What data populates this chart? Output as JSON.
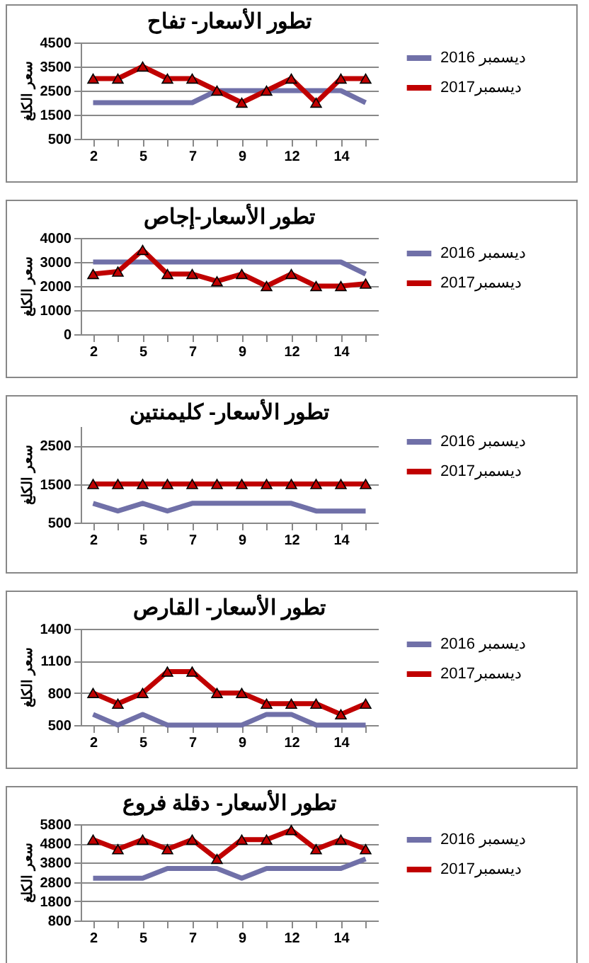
{
  "chart_data": [
    {
      "type": "line",
      "title": "تطور الأسعار- تفاح",
      "ylabel": "سعر الكلغ",
      "categories": [
        "2",
        null,
        "5",
        null,
        "7",
        null,
        "9",
        null,
        "12",
        null,
        "14",
        null
      ],
      "ylim": [
        500,
        4500
      ],
      "yticks": [
        500,
        1500,
        2500,
        3500,
        4500
      ],
      "grid": "y",
      "legend": "right",
      "series": [
        {
          "name": "ديسمبر 2016",
          "color": "#7070a8",
          "marker": "none",
          "values": [
            2000,
            2000,
            2000,
            2000,
            2000,
            2500,
            2500,
            2500,
            2500,
            2500,
            2500,
            2000
          ]
        },
        {
          "name": "ديسمبر2017",
          "color": "#c00000",
          "marker": "triangle",
          "values": [
            3000,
            3000,
            3500,
            3000,
            3000,
            2500,
            2000,
            2500,
            3000,
            2000,
            3000,
            3000
          ]
        }
      ]
    },
    {
      "type": "line",
      "title": "تطور الأسعار-إجاص",
      "ylabel": "سعر الكلغ",
      "categories": [
        "2",
        null,
        "5",
        null,
        "7",
        null,
        "9",
        null,
        "12",
        null,
        "14",
        null
      ],
      "ylim": [
        0,
        4000
      ],
      "yticks": [
        0,
        1000,
        2000,
        3000,
        4000
      ],
      "grid": "y",
      "legend": "right",
      "series": [
        {
          "name": "ديسمبر 2016",
          "color": "#7070a8",
          "marker": "none",
          "values": [
            3000,
            3000,
            3000,
            3000,
            3000,
            3000,
            3000,
            3000,
            3000,
            3000,
            3000,
            2500
          ]
        },
        {
          "name": "ديسمبر2017",
          "color": "#c00000",
          "marker": "triangle",
          "values": [
            2500,
            2600,
            3500,
            2500,
            2500,
            2200,
            2500,
            2000,
            2500,
            2000,
            2000,
            2100
          ]
        }
      ]
    },
    {
      "type": "line",
      "title": "تطور الأسعار- كليمنتين",
      "ylabel": "سعر الكلغ",
      "categories": [
        "2",
        null,
        "5",
        null,
        "7",
        null,
        "9",
        null,
        "12",
        null,
        "14",
        null
      ],
      "ylim": [
        500,
        3000
      ],
      "yticks": [
        500,
        1500,
        2500
      ],
      "grid": "y",
      "legend": "right",
      "series": [
        {
          "name": "ديسمبر 2016",
          "color": "#7070a8",
          "marker": "none",
          "values": [
            1000,
            800,
            1000,
            800,
            1000,
            1000,
            1000,
            1000,
            1000,
            800,
            800,
            800
          ]
        },
        {
          "name": "ديسمبر2017",
          "color": "#c00000",
          "marker": "triangle",
          "values": [
            1500,
            1500,
            1500,
            1500,
            1500,
            1500,
            1500,
            1500,
            1500,
            1500,
            1500,
            1500
          ]
        }
      ]
    },
    {
      "type": "line",
      "title": "تطور الأسعار- القارص",
      "ylabel": "سعر الكلغ",
      "categories": [
        "2",
        null,
        "5",
        null,
        "7",
        null,
        "9",
        null,
        "12",
        null,
        "14",
        null
      ],
      "ylim": [
        500,
        1400
      ],
      "yticks": [
        500,
        800,
        1100,
        1400
      ],
      "grid": "y",
      "legend": "right",
      "series": [
        {
          "name": "ديسمبر 2016",
          "color": "#7070a8",
          "marker": "none",
          "values": [
            600,
            500,
            600,
            500,
            500,
            500,
            500,
            600,
            600,
            500,
            500,
            500
          ]
        },
        {
          "name": "ديسمبر2017",
          "color": "#c00000",
          "marker": "triangle",
          "values": [
            800,
            700,
            800,
            1000,
            1000,
            800,
            800,
            700,
            700,
            700,
            600,
            700
          ]
        }
      ]
    },
    {
      "type": "line",
      "title": "تطور الأسعار- دقلة فروع",
      "ylabel": "سعر الكلغ",
      "categories": [
        "2",
        null,
        "5",
        null,
        "7",
        null,
        "9",
        null,
        "12",
        null,
        "14",
        null
      ],
      "ylim": [
        800,
        5800
      ],
      "yticks": [
        800,
        1800,
        2800,
        3800,
        4800,
        5800
      ],
      "grid": "y",
      "legend": "right",
      "series": [
        {
          "name": "ديسمبر 2016",
          "color": "#7070a8",
          "marker": "none",
          "values": [
            3000,
            3000,
            3000,
            3500,
            3500,
            3500,
            3000,
            3500,
            3500,
            3500,
            3500,
            4000
          ]
        },
        {
          "name": "ديسمبر2017",
          "color": "#c00000",
          "marker": "triangle",
          "values": [
            5000,
            4500,
            5000,
            4500,
            5000,
            4000,
            5000,
            5000,
            5500,
            4500,
            5000,
            4500
          ]
        }
      ]
    }
  ]
}
